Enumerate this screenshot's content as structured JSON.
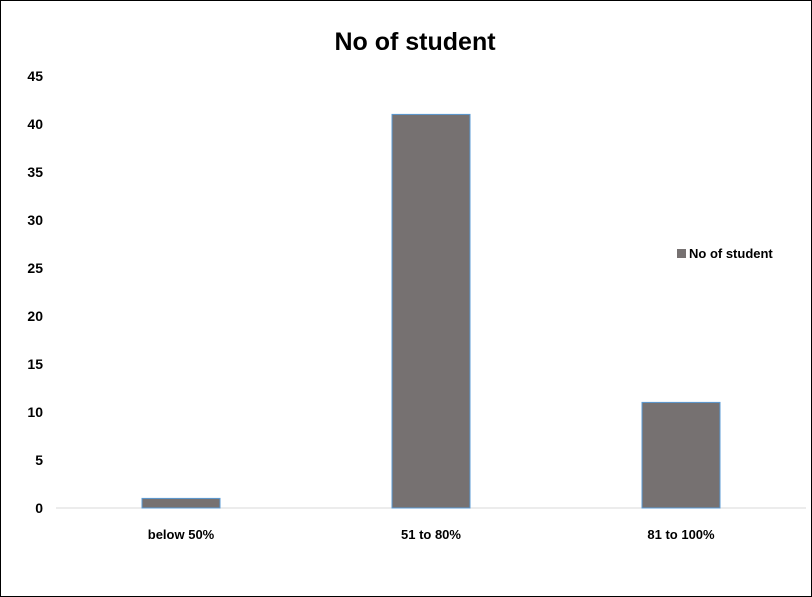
{
  "chart_data": {
    "type": "bar",
    "title": "No of student",
    "xlabel": "",
    "ylabel": "",
    "categories": [
      "below 50%",
      "51 to 80%",
      "81 to 100%"
    ],
    "series": [
      {
        "name": "No of student",
        "values": [
          1,
          41,
          11
        ]
      }
    ],
    "ylim": [
      0,
      45
    ],
    "yticks": [
      0,
      5,
      10,
      15,
      20,
      25,
      30,
      35,
      40,
      45
    ],
    "grid": false,
    "legend": "right",
    "colors": {
      "bar": "#767171",
      "bar_edge": "#5b9bd5",
      "axis": "#d9d9d9"
    }
  }
}
